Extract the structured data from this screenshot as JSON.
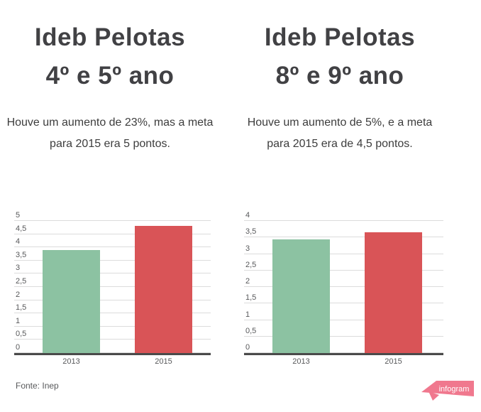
{
  "footer": {
    "source_label": "Fonte: Inep"
  },
  "logo": {
    "text": "infogram",
    "banner_color": "#f0788e",
    "text_color": "#ffffff"
  },
  "chart_data": [
    {
      "type": "bar",
      "title_line1": "Ideb Pelotas",
      "title_line2": "4º e 5º ano",
      "subtitle": "Houve um aumento de 23%, mas a meta para 2015 era 5 pontos.",
      "categories": [
        "2013",
        "2015"
      ],
      "values": [
        3.9,
        4.8
      ],
      "bar_colors": [
        "#8cc2a2",
        "#d95457"
      ],
      "ylim": [
        0,
        5
      ],
      "ytick_values": [
        5,
        4.5,
        4,
        3.5,
        3,
        2.5,
        2,
        1.5,
        1,
        0.5,
        0
      ],
      "ytick_labels": [
        "5",
        "4,5",
        "4",
        "3,5",
        "3",
        "2,5",
        "2",
        "1,5",
        "1",
        "0,5",
        "0"
      ],
      "grid": true,
      "legend": false
    },
    {
      "type": "bar",
      "title_line1": "Ideb Pelotas",
      "title_line2": "8º e 9º ano",
      "subtitle": "Houve um aumento de 5%, e a meta para 2015 era de 4,5 pontos.",
      "categories": [
        "2013",
        "2015"
      ],
      "values": [
        3.45,
        3.65
      ],
      "bar_colors": [
        "#8cc2a2",
        "#d95457"
      ],
      "ylim": [
        0,
        4
      ],
      "ytick_values": [
        4,
        3.5,
        3,
        2.5,
        2,
        1.5,
        1,
        0.5,
        0
      ],
      "ytick_labels": [
        "4",
        "3,5",
        "3",
        "2,5",
        "2",
        "1,5",
        "1",
        "0,5",
        "0"
      ],
      "grid": true,
      "legend": false
    }
  ]
}
